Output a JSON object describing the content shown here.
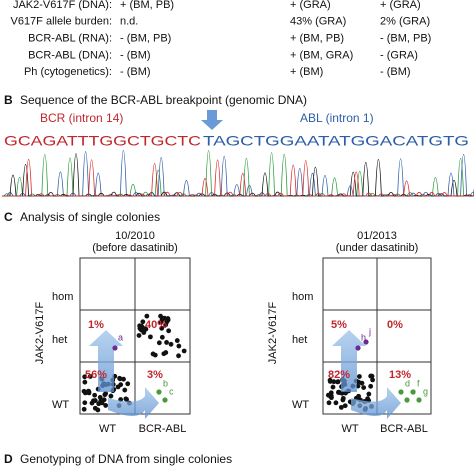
{
  "table": {
    "rows": [
      [
        "JAK2-V617F (DNA):",
        "+ (BM, PB)",
        "+ (GRA)",
        "+ (GRA)"
      ],
      [
        "V617F allele burden:",
        "n.d.",
        "43% (GRA)",
        "2% (GRA)"
      ],
      [
        "BCR-ABL (RNA):",
        "- (BM, PB)",
        "+ (BM, PB)",
        "- (BM, PB)"
      ],
      [
        "BCR-ABL (DNA):",
        "- (BM)",
        "+ (BM, GRA)",
        "- (GRA)"
      ],
      [
        "Ph (cytogenetics):",
        "- (BM)",
        "+ (BM)",
        "- (BM)"
      ]
    ]
  },
  "section_b": {
    "letter": "B",
    "title": "Sequence of the BCR-ABL breakpoint (genomic DNA)",
    "bcr_label": "BCR (intron 14)",
    "abl_label": "ABL (intron 1)",
    "bcr_sequence": "GCAGATTTGGCTGCTC",
    "abl_sequence": "TAGCTGGAATATGGACATGTG"
  },
  "section_c": {
    "letter": "C",
    "title": "Analysis of single colonies",
    "y_axis": "JAK2-V617F",
    "row_labels": [
      "hom",
      "het",
      "WT"
    ],
    "col_labels": [
      "WT",
      "BCR-ABL"
    ],
    "panels": [
      {
        "date": "10/2010",
        "note": "(before dasatinib)",
        "het_wt": "1%",
        "het_bcr": "40%",
        "wt_wt": "56%",
        "wt_bcr": "3%",
        "purple": [
          "a"
        ],
        "green": [
          "b",
          "c"
        ]
      },
      {
        "date": "01/2013",
        "note": "(under dasatinib)",
        "het_wt": "5%",
        "het_bcr": "0%",
        "wt_wt": "82%",
        "wt_bcr": "13%",
        "purple": [
          "h",
          "j"
        ],
        "green": [
          "d",
          "e",
          "f",
          "g"
        ]
      }
    ]
  },
  "section_d": {
    "letter": "D",
    "title": "Genotyping of DNA from single colonies"
  }
}
